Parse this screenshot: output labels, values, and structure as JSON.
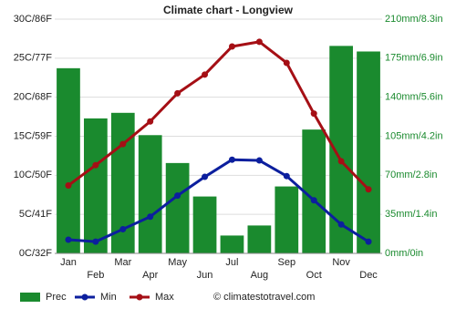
{
  "chart_data": {
    "type": "bar",
    "title": "Climate chart - Longview",
    "categories": [
      "Jan",
      "Feb",
      "Mar",
      "Apr",
      "May",
      "Jun",
      "Jul",
      "Aug",
      "Sep",
      "Oct",
      "Nov",
      "Dec"
    ],
    "series": [
      {
        "name": "Prec",
        "type": "bar",
        "axis": "y2",
        "color": "#1a8a2e",
        "values": [
          166,
          121,
          126,
          106,
          81,
          51,
          16,
          25,
          60,
          111,
          186,
          181
        ]
      },
      {
        "name": "Min",
        "type": "line",
        "color": "#0c1f9e",
        "values": [
          1.75,
          1.5,
          3.1,
          4.7,
          7.4,
          9.8,
          12.0,
          11.9,
          9.9,
          6.8,
          3.7,
          1.5
        ]
      },
      {
        "name": "Max",
        "type": "line",
        "color": "#a50f15",
        "values": [
          8.7,
          11.3,
          14.0,
          16.9,
          20.5,
          22.9,
          26.5,
          27.1,
          24.4,
          17.9,
          11.8,
          8.2
        ]
      }
    ],
    "ylim": [
      0,
      30
    ],
    "yticks": [
      {
        "value": 0,
        "label": "0C/32F"
      },
      {
        "value": 5,
        "label": "5C/41F"
      },
      {
        "value": 10,
        "label": "10C/50F"
      },
      {
        "value": 15,
        "label": "15C/59F"
      },
      {
        "value": 20,
        "label": "20C/68F"
      },
      {
        "value": 25,
        "label": "25C/77F"
      },
      {
        "value": 30,
        "label": "30C/86F"
      }
    ],
    "y2lim": [
      0,
      210
    ],
    "y2ticks": [
      {
        "value": 0,
        "label": "0mm/0in"
      },
      {
        "value": 35,
        "label": "35mm/1.4in"
      },
      {
        "value": 70,
        "label": "70mm/2.8in"
      },
      {
        "value": 105,
        "label": "105mm/4.2in"
      },
      {
        "value": 140,
        "label": "140mm/5.6in"
      },
      {
        "value": 175,
        "label": "175mm/6.9in"
      },
      {
        "value": 210,
        "label": "210mm/8.3in"
      }
    ],
    "grid": true,
    "credit": "© climatestotravel.com"
  }
}
